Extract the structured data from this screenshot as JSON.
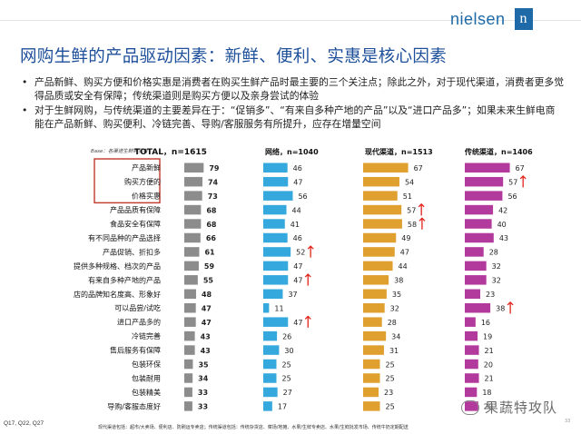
{
  "brand": {
    "name": "nielsen",
    "mark": "n"
  },
  "title": "网购生鲜的产品驱动因素：新鲜、便利、实惠是核心因素",
  "bullets": [
    "产品新鲜、购买方便和价格实惠是消费者在购买生鲜产品时最主要的三个关注点；除此之外，对于现代渠道，消费者更多觉得品质或安全有保障；传统渠道则是购买方便以及亲身尝试的体验",
    "对于生鲜网购，与传统渠道的主要差异在于：“促销多”、“有来自多种产地的产品”以及“进口产品多”；如果未来生鲜电商能在产品新鲜、购买便利、冷链完善、导购/客服服务有所提升，应存在增量空间"
  ],
  "footer_ref": "Q17, Q22, Q27",
  "footnote": "现代渠道包括：超市/大卖场、便利店、防刷运专卖店；传统渠道包括：传统杂货店、菜场/地摊、水果/生鲜专卖店、水果/生鲜批发市场、传统牛奶定期配送",
  "watermark": "果蔬特攻队",
  "page_number": "33",
  "colors": {
    "total": "#8c8c8c",
    "online": "#35a8dd",
    "modern": "#e0a030",
    "traditional": "#b23a9c",
    "arrow": "#e2231a",
    "highlight": "#c0392b"
  },
  "chart_data": {
    "type": "bar",
    "orientation": "horizontal",
    "base_label": "Base：各渠道生鲜购买者",
    "categories": [
      "产品新鲜",
      "购买方便的",
      "价格实惠",
      "产品品质有保障",
      "食品安全有保障",
      "有不同品种的产品选择",
      "产品促销、折扣多",
      "提供多种规格、档次的产品",
      "有来自多种产地的产品",
      "店的品牌知名度高、形象好",
      "可以品尝/试吃",
      "进口产品多的",
      "冷链完善",
      "售后服务有保障",
      "包装环保",
      "包装耐用",
      "包装精美",
      "导购/客服态度好"
    ],
    "highlighted_categories": [
      "产品新鲜",
      "购买方便的",
      "价格实惠"
    ],
    "series": [
      {
        "name": "TOTAL",
        "header": "TOTAL，n=1615",
        "values": [
          79,
          74,
          73,
          68,
          68,
          66,
          61,
          59,
          55,
          48,
          47,
          47,
          43,
          43,
          35,
          34,
          33,
          33
        ],
        "arrows": []
      },
      {
        "name": "网络",
        "header": "网络，n=1040",
        "values": [
          46,
          47,
          56,
          44,
          41,
          46,
          52,
          47,
          47,
          37,
          11,
          47,
          26,
          30,
          25,
          25,
          27,
          17
        ],
        "arrows": [
          6,
          8,
          11
        ]
      },
      {
        "name": "现代渠道",
        "header": "现代渠道，n=1513",
        "values": [
          67,
          54,
          51,
          57,
          58,
          49,
          47,
          44,
          38,
          35,
          32,
          28,
          34,
          31,
          25,
          25,
          23,
          25
        ],
        "arrows": [
          3,
          4
        ]
      },
      {
        "name": "传统渠道",
        "header": "传统渠道，n=1406",
        "values": [
          67,
          57,
          56,
          42,
          40,
          43,
          28,
          32,
          32,
          23,
          38,
          16,
          19,
          21,
          20,
          21,
          18,
          20
        ],
        "arrows": [
          1,
          10
        ]
      }
    ]
  }
}
